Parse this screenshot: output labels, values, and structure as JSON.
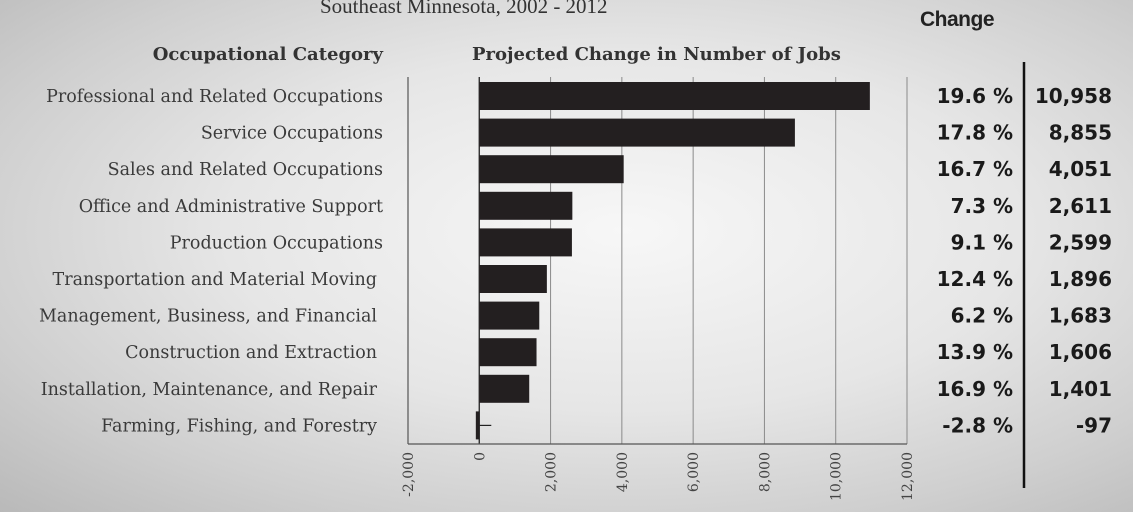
{
  "header": {
    "subtitle": "Southeast Minnesota, 2002 - 2012",
    "change_heading": "Change",
    "category_heading": "Occupational Category",
    "chart_heading": "Projected Change in Number of Jobs"
  },
  "chart_data": {
    "type": "bar",
    "orientation": "horizontal",
    "title": "Projected Change in Number of Jobs",
    "subtitle": "Southeast Minnesota, 2002 - 2012",
    "categories": [
      "Professional and Related Occupations",
      "Service Occupations",
      "Sales and Related Occupations",
      "Office and Administrative Support",
      "Production Occupations",
      "Transportation and Material Moving",
      "Management, Business, and Financial",
      "Construction and Extraction",
      "Installation, Maintenance, and Repair",
      "Farming, Fishing, and Forestry"
    ],
    "values": [
      10958,
      8855,
      4051,
      2611,
      2599,
      1896,
      1683,
      1606,
      1401,
      -97
    ],
    "percent_change": [
      "19.6 %",
      "17.8 %",
      "16.7 %",
      "7.3 %",
      "9.1 %",
      "12.4 %",
      "6.2 %",
      "13.9 %",
      "16.9 %",
      "-2.8 %"
    ],
    "value_labels": [
      "10,958",
      "8,855",
      "4,051",
      "2,611",
      "2,599",
      "1,896",
      "1,683",
      "1,606",
      "1,401",
      "-97"
    ],
    "xlim": [
      -2000,
      12000
    ],
    "xticks": [
      -2000,
      0,
      2000,
      4000,
      6000,
      8000,
      10000,
      12000
    ],
    "xtick_labels": [
      "-2,000",
      "0",
      "2,000",
      "4,000",
      "6,000",
      "8,000",
      "10,000",
      "12,000"
    ],
    "grid": true,
    "bar_color": "#231f20"
  }
}
